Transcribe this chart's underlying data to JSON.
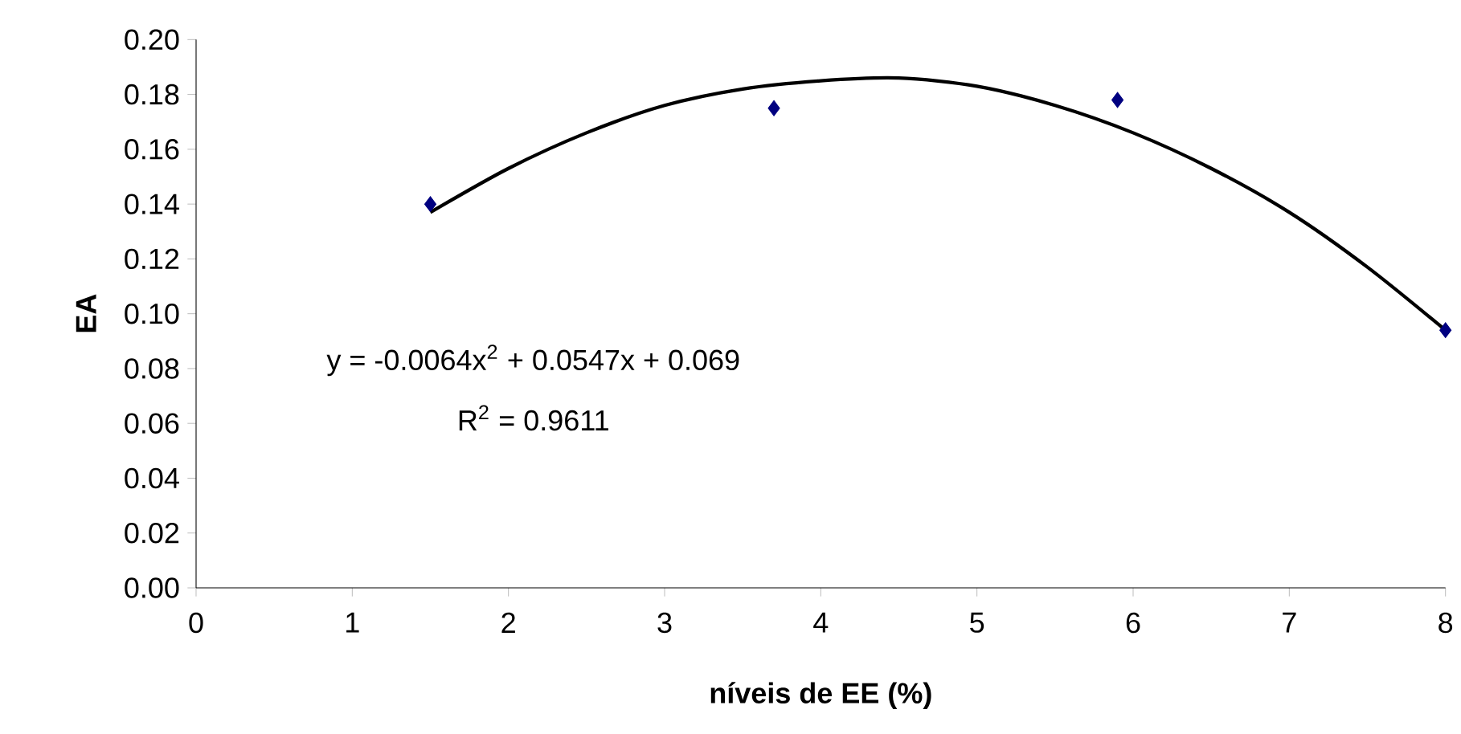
{
  "chart_data": {
    "type": "scatter",
    "xlabel": "níveis de EE (%)",
    "ylabel": "EA",
    "xlim": [
      0,
      8
    ],
    "xticks": [
      0,
      1,
      2,
      3,
      4,
      5,
      6,
      7,
      8
    ],
    "ylim": [
      0,
      0.2
    ],
    "yticks": [
      {
        "value": 0,
        "label": "0.00"
      },
      {
        "value": 0.02,
        "label": "0.02"
      },
      {
        "value": 0.04,
        "label": "0.04"
      },
      {
        "value": 0.06,
        "label": "0.06"
      },
      {
        "value": 0.08,
        "label": "0.08"
      },
      {
        "value": 0.1,
        "label": "0.10"
      },
      {
        "value": 0.12,
        "label": "0.12"
      },
      {
        "value": 0.14,
        "label": "0.14"
      },
      {
        "value": 0.16,
        "label": "0.16"
      },
      {
        "value": 0.18,
        "label": "0.18"
      },
      {
        "value": 0.2,
        "label": "0.20"
      }
    ],
    "grid": false,
    "marker": "diamond",
    "series": [
      {
        "color": "#000080",
        "x": [
          1.5,
          3.7,
          5.9,
          8
        ],
        "values": [
          0.14,
          0.175,
          0.178,
          0.094
        ]
      },
      {
        "type": "line",
        "color": "#000000",
        "marker": "none",
        "line_style": "solid",
        "x": [
          1.5,
          2,
          2.5,
          3,
          3.5,
          4,
          4.5,
          5,
          5.5,
          6,
          6.5,
          7,
          7.5,
          8
        ],
        "values": [
          0.137,
          0.153,
          0.166,
          0.176,
          0.182,
          0.185,
          0.186,
          0.183,
          0.176,
          0.166,
          0.153,
          0.137,
          0.117,
          0.094
        ]
      }
    ],
    "annotations": [
      "y = -0.0064x$^{2}$ + 0.0547x + 0.069",
      "R$^{2}$ = 0.9611"
    ]
  }
}
